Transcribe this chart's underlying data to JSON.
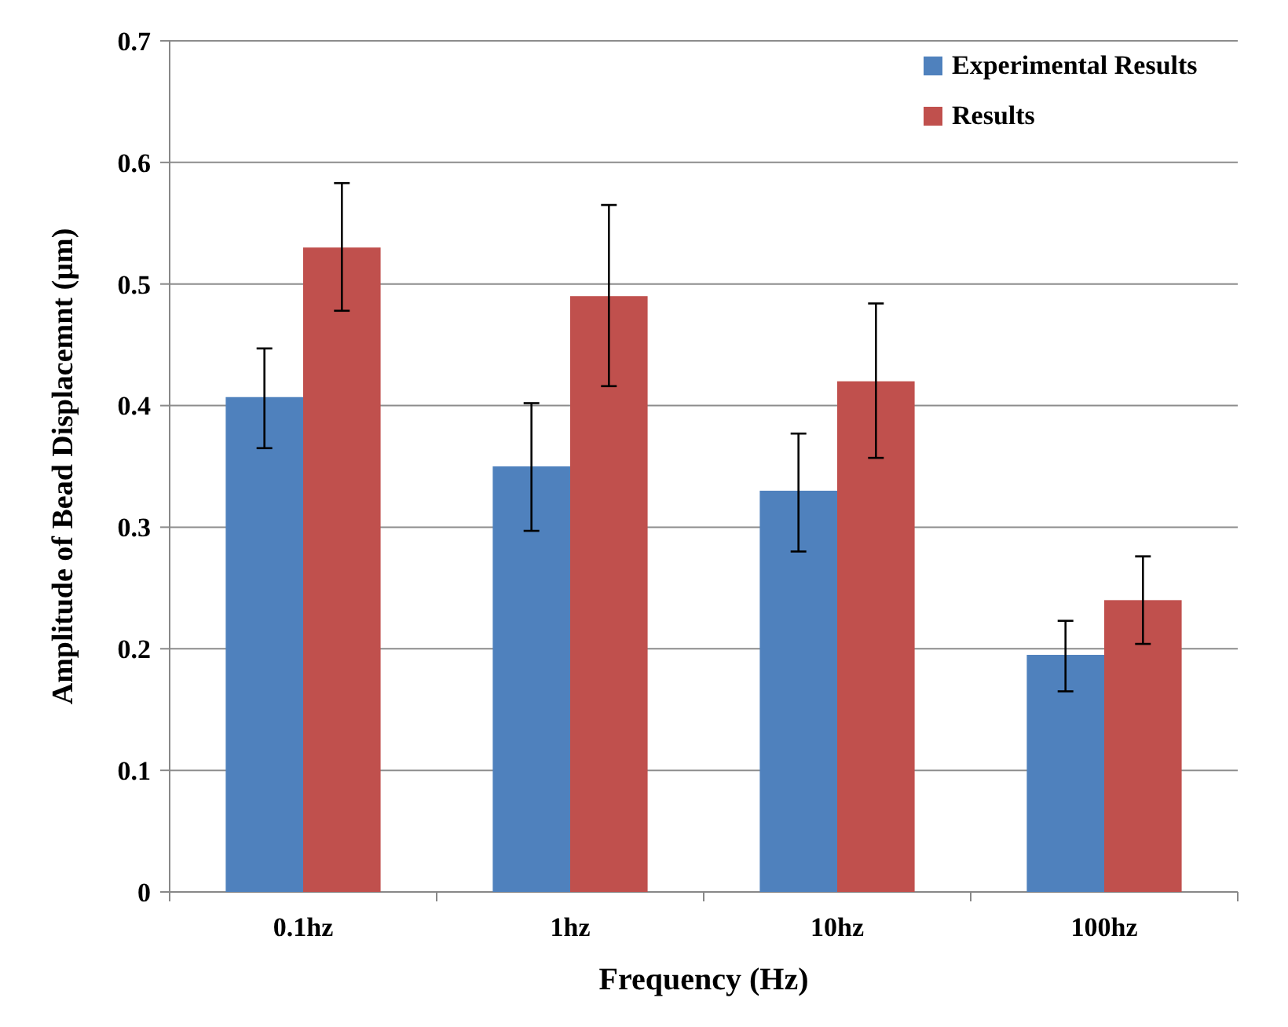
{
  "chart_data": {
    "type": "bar",
    "xlabel": "Frequency  (Hz)",
    "ylabel": "Amplitude  of Bead Displacemnt  (µm)",
    "categories": [
      "0.1hz",
      "1hz",
      "10hz",
      "100hz"
    ],
    "series": [
      {
        "name": "Experimental Results",
        "color": "#4f81bd",
        "values": [
          0.407,
          0.35,
          0.33,
          0.195
        ],
        "errors": [
          [
            0.365,
            0.447
          ],
          [
            0.297,
            0.402
          ],
          [
            0.28,
            0.377
          ],
          [
            0.165,
            0.223
          ]
        ]
      },
      {
        "name": "Results",
        "color": "#c0504d",
        "values": [
          0.53,
          0.49,
          0.42,
          0.24
        ],
        "errors": [
          [
            0.478,
            0.583
          ],
          [
            0.416,
            0.565
          ],
          [
            0.357,
            0.484
          ],
          [
            0.204,
            0.276
          ]
        ]
      }
    ],
    "ylim": [
      0,
      0.7
    ],
    "yticks": [
      {
        "value": 0,
        "label": "0"
      },
      0.1,
      0.2,
      0.3,
      0.4,
      0.5,
      0.6,
      0.7
    ],
    "grid": "y",
    "legend": "top right"
  }
}
